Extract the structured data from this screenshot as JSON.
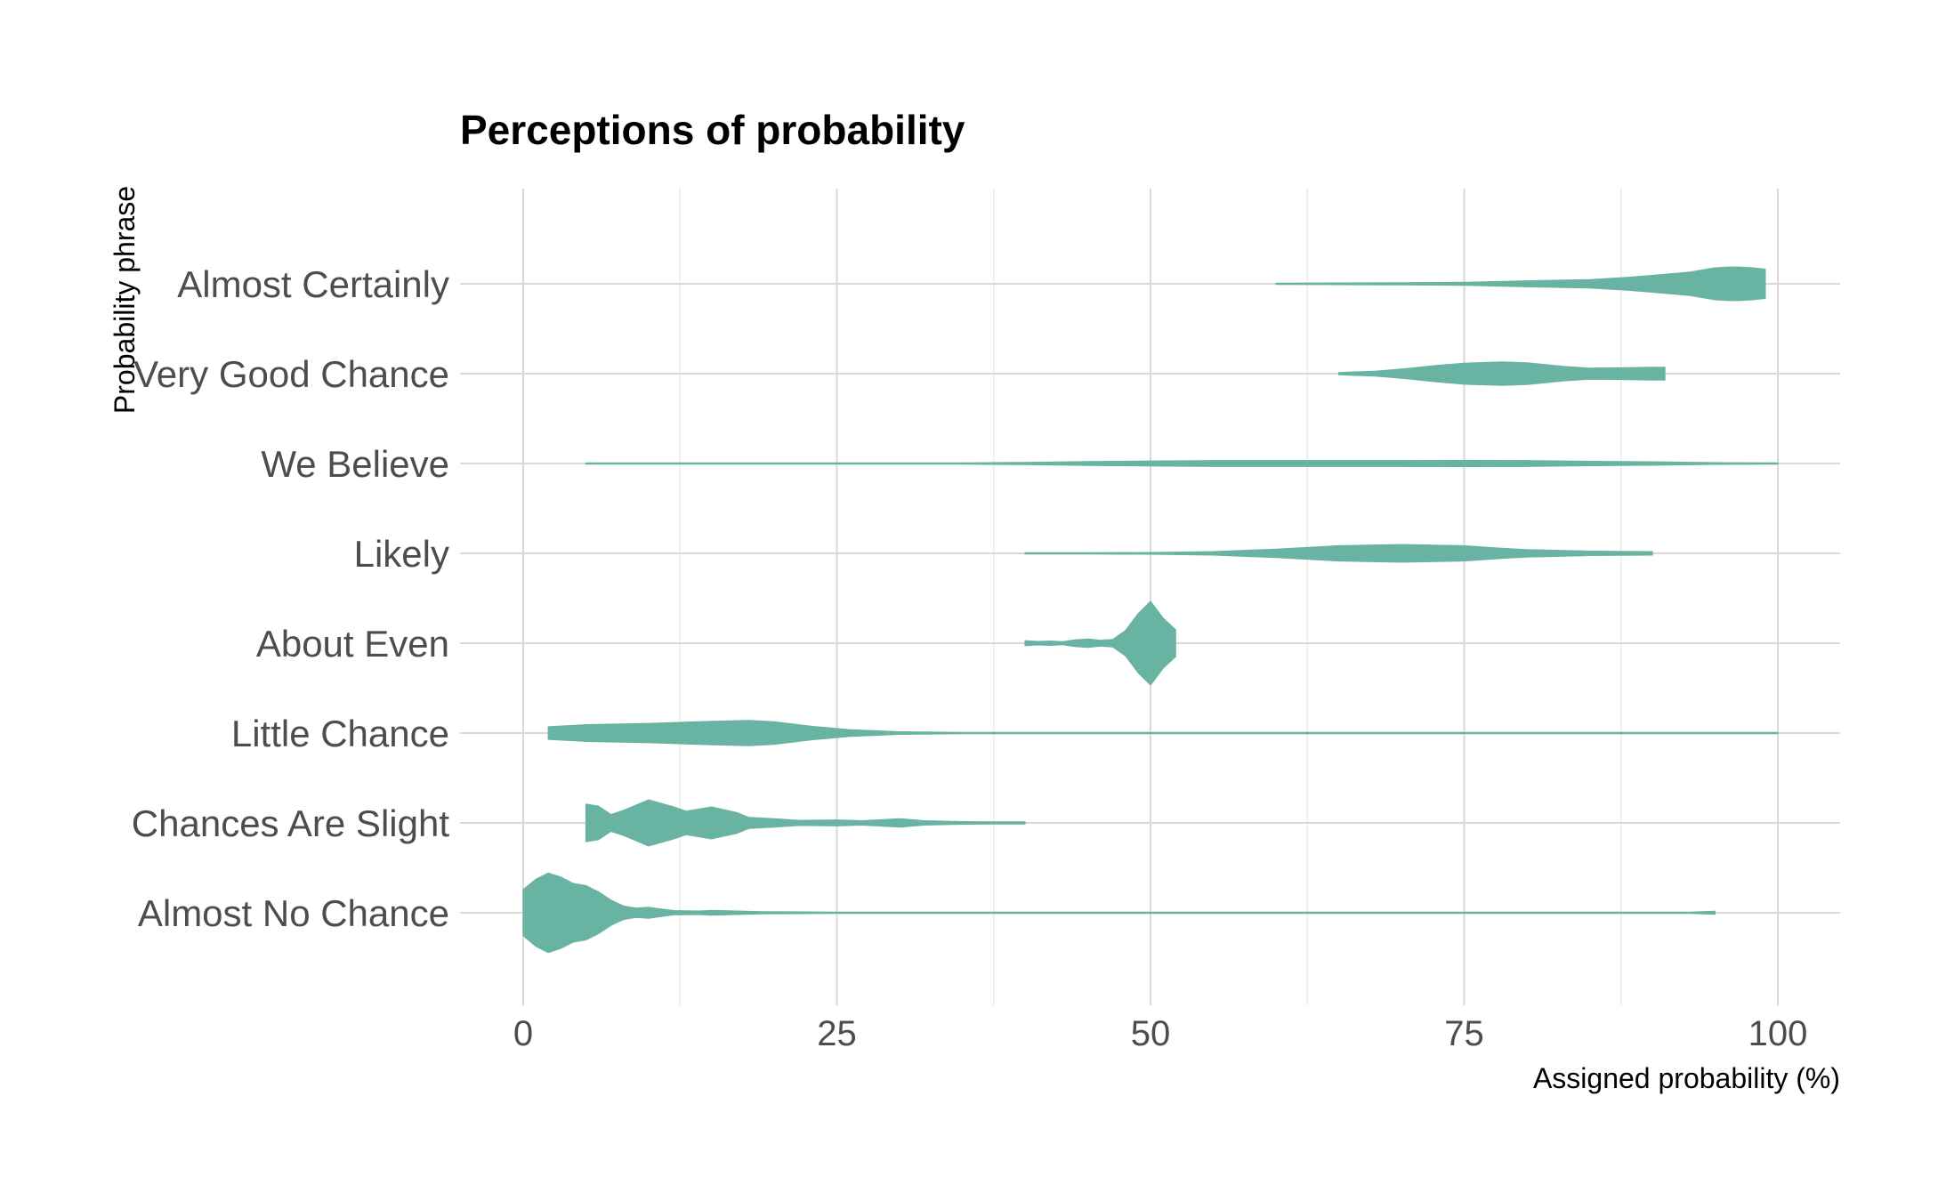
{
  "chart_data": {
    "type": "violin",
    "orientation": "horizontal",
    "title": "Perceptions of probability",
    "xlabel": "Assigned probability (%)",
    "ylabel": "Probability phrase",
    "xlim": [
      -10,
      105
    ],
    "x_ticks": [
      0,
      25,
      50,
      75,
      100
    ],
    "grid": true,
    "legend": "none",
    "fill_color": "#69b3a2",
    "categories": [
      "Almost No Chance",
      "Chances Are Slight",
      "Little Chance",
      "About Even",
      "Likely",
      "We Believe",
      "Very Good Chance",
      "Almost Certainly"
    ],
    "series": [
      {
        "category": "Almost No Chance",
        "density": [
          [
            0,
            0.55
          ],
          [
            1,
            0.8
          ],
          [
            2,
            0.95
          ],
          [
            3,
            0.85
          ],
          [
            4,
            0.7
          ],
          [
            5,
            0.65
          ],
          [
            6,
            0.5
          ],
          [
            7,
            0.3
          ],
          [
            8,
            0.16
          ],
          [
            9,
            0.11
          ],
          [
            10,
            0.13
          ],
          [
            11,
            0.09
          ],
          [
            12,
            0.05
          ],
          [
            14,
            0.04
          ],
          [
            15,
            0.055
          ],
          [
            17,
            0.04
          ],
          [
            19,
            0.025
          ],
          [
            25,
            0.015
          ],
          [
            40,
            0.015
          ],
          [
            60,
            0.015
          ],
          [
            80,
            0.015
          ],
          [
            93,
            0.015
          ],
          [
            95,
            0.035
          ]
        ]
      },
      {
        "category": "Chances Are Slight",
        "density": [
          [
            5,
            0.45
          ],
          [
            6,
            0.4
          ],
          [
            7,
            0.2
          ],
          [
            8,
            0.3
          ],
          [
            10,
            0.55
          ],
          [
            12,
            0.38
          ],
          [
            13,
            0.28
          ],
          [
            15,
            0.38
          ],
          [
            17,
            0.25
          ],
          [
            18,
            0.13
          ],
          [
            20,
            0.1
          ],
          [
            22,
            0.06
          ],
          [
            25,
            0.07
          ],
          [
            27,
            0.05
          ],
          [
            30,
            0.1
          ],
          [
            32,
            0.05
          ],
          [
            35,
            0.03
          ],
          [
            38,
            0.025
          ],
          [
            40,
            0.025
          ]
        ]
      },
      {
        "category": "Little Chance",
        "density": [
          [
            2,
            0.15
          ],
          [
            5,
            0.2
          ],
          [
            10,
            0.23
          ],
          [
            15,
            0.28
          ],
          [
            18,
            0.3
          ],
          [
            20,
            0.27
          ],
          [
            23,
            0.16
          ],
          [
            26,
            0.08
          ],
          [
            30,
            0.03
          ],
          [
            35,
            0.015
          ],
          [
            50,
            0.015
          ],
          [
            75,
            0.015
          ],
          [
            100,
            0.015
          ]
        ]
      },
      {
        "category": "About Even",
        "density": [
          [
            40,
            0.06
          ],
          [
            41,
            0.04
          ],
          [
            42,
            0.05
          ],
          [
            43,
            0.035
          ],
          [
            44,
            0.08
          ],
          [
            45,
            0.1
          ],
          [
            46,
            0.07
          ],
          [
            47,
            0.09
          ],
          [
            48,
            0.3
          ],
          [
            49,
            0.7
          ],
          [
            50,
            1.0
          ],
          [
            51,
            0.6
          ],
          [
            52,
            0.32
          ]
        ]
      },
      {
        "category": "Likely",
        "density": [
          [
            40,
            0.015
          ],
          [
            45,
            0.015
          ],
          [
            50,
            0.02
          ],
          [
            55,
            0.04
          ],
          [
            60,
            0.1
          ],
          [
            65,
            0.18
          ],
          [
            70,
            0.21
          ],
          [
            75,
            0.18
          ],
          [
            78,
            0.12
          ],
          [
            80,
            0.09
          ],
          [
            85,
            0.05
          ],
          [
            90,
            0.04
          ]
        ]
      },
      {
        "category": "We Believe",
        "density": [
          [
            5,
            0.012
          ],
          [
            15,
            0.012
          ],
          [
            25,
            0.012
          ],
          [
            35,
            0.015
          ],
          [
            40,
            0.025
          ],
          [
            45,
            0.045
          ],
          [
            50,
            0.06
          ],
          [
            55,
            0.07
          ],
          [
            60,
            0.07
          ],
          [
            65,
            0.07
          ],
          [
            70,
            0.07
          ],
          [
            75,
            0.075
          ],
          [
            80,
            0.07
          ],
          [
            85,
            0.05
          ],
          [
            90,
            0.04
          ],
          [
            95,
            0.02
          ],
          [
            100,
            0.012
          ]
        ]
      },
      {
        "category": "Very Good Chance",
        "density": [
          [
            65,
            0.025
          ],
          [
            68,
            0.06
          ],
          [
            70,
            0.11
          ],
          [
            73,
            0.2
          ],
          [
            75,
            0.25
          ],
          [
            78,
            0.28
          ],
          [
            80,
            0.26
          ],
          [
            83,
            0.17
          ],
          [
            85,
            0.13
          ],
          [
            88,
            0.14
          ],
          [
            90,
            0.15
          ],
          [
            91,
            0.15
          ]
        ]
      },
      {
        "category": "Almost Certainly",
        "density": [
          [
            60,
            0.015
          ],
          [
            65,
            0.02
          ],
          [
            70,
            0.025
          ],
          [
            75,
            0.035
          ],
          [
            80,
            0.07
          ],
          [
            85,
            0.1
          ],
          [
            88,
            0.15
          ],
          [
            90,
            0.2
          ],
          [
            93,
            0.28
          ],
          [
            95,
            0.38
          ],
          [
            96,
            0.4
          ],
          [
            97,
            0.4
          ],
          [
            98,
            0.38
          ],
          [
            99,
            0.35
          ]
        ]
      }
    ]
  }
}
